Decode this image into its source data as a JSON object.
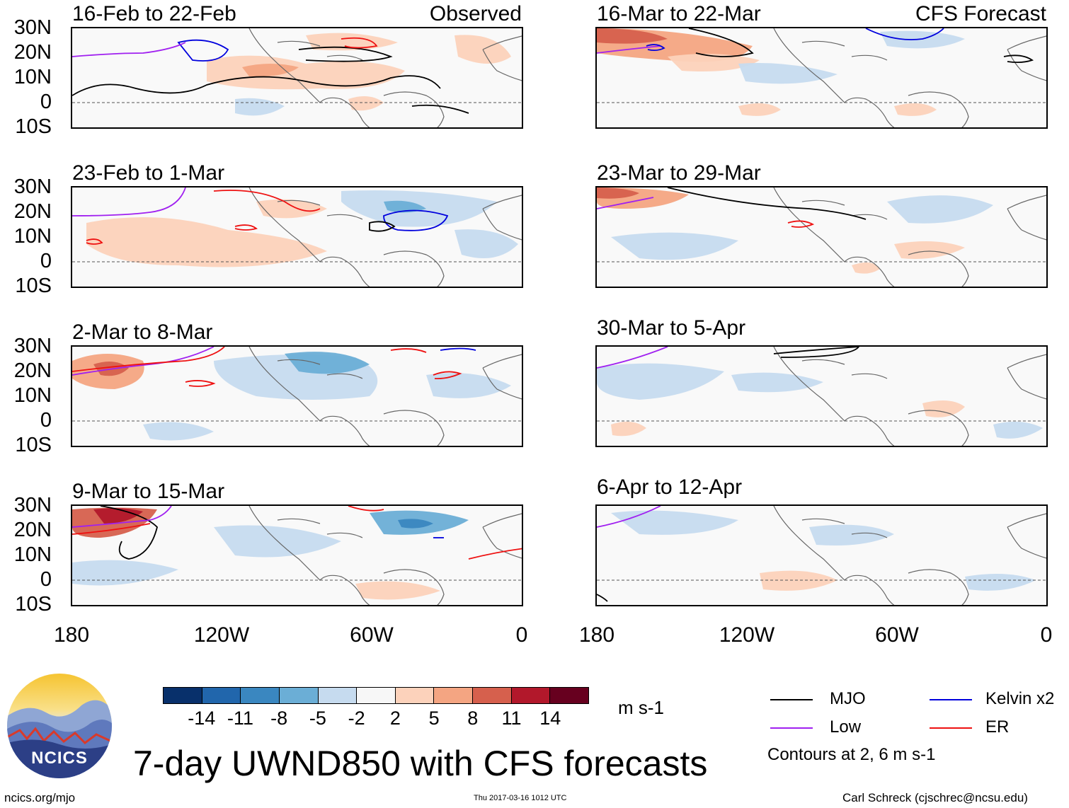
{
  "observed_tag": "Observed",
  "forecast_tag": "CFS Forecast",
  "panels_left": [
    {
      "title": "16-Feb to 22-Feb"
    },
    {
      "title": "23-Feb to 1-Mar"
    },
    {
      "title": "2-Mar to 8-Mar"
    },
    {
      "title": "9-Mar to 15-Mar"
    }
  ],
  "panels_right": [
    {
      "title": "16-Mar to 22-Mar"
    },
    {
      "title": "23-Mar to 29-Mar"
    },
    {
      "title": "30-Mar to 5-Apr"
    },
    {
      "title": "6-Apr to 12-Apr"
    }
  ],
  "lat_labels": [
    "30N",
    "20N",
    "10N",
    "0",
    "10S"
  ],
  "lon_labels": [
    "180",
    "120W",
    "60W",
    "0"
  ],
  "colorbar": {
    "labels": [
      "-14",
      "-11",
      "-8",
      "-5",
      "-2",
      "2",
      "5",
      "8",
      "11",
      "14"
    ],
    "colors": [
      "#08306b",
      "#2166ac",
      "#3a87c0",
      "#6baed6",
      "#c6dbef",
      "#f7f7f7",
      "#fcd2bb",
      "#f4a582",
      "#d6604d",
      "#b2182b",
      "#67001f"
    ],
    "unit": "m s-1"
  },
  "legend": {
    "mjo": {
      "label": "MJO",
      "color": "#000000"
    },
    "kelvin": {
      "label": "Kelvin x2",
      "color": "#0000dd"
    },
    "low": {
      "label": "Low",
      "color": "#a020f0"
    },
    "er": {
      "label": "ER",
      "color": "#ee1111"
    },
    "contours_note": "Contours at 2, 6 m s-1"
  },
  "main_title": "7-day UWND850 with CFS forecasts",
  "logo_text": "NCICS",
  "footer": {
    "site": "ncics.org/mjo",
    "timestamp": "Thu 2017-03-16 1012 UTC",
    "credit": "Carl Schreck (cjschrec@ncsu.edu)"
  }
}
